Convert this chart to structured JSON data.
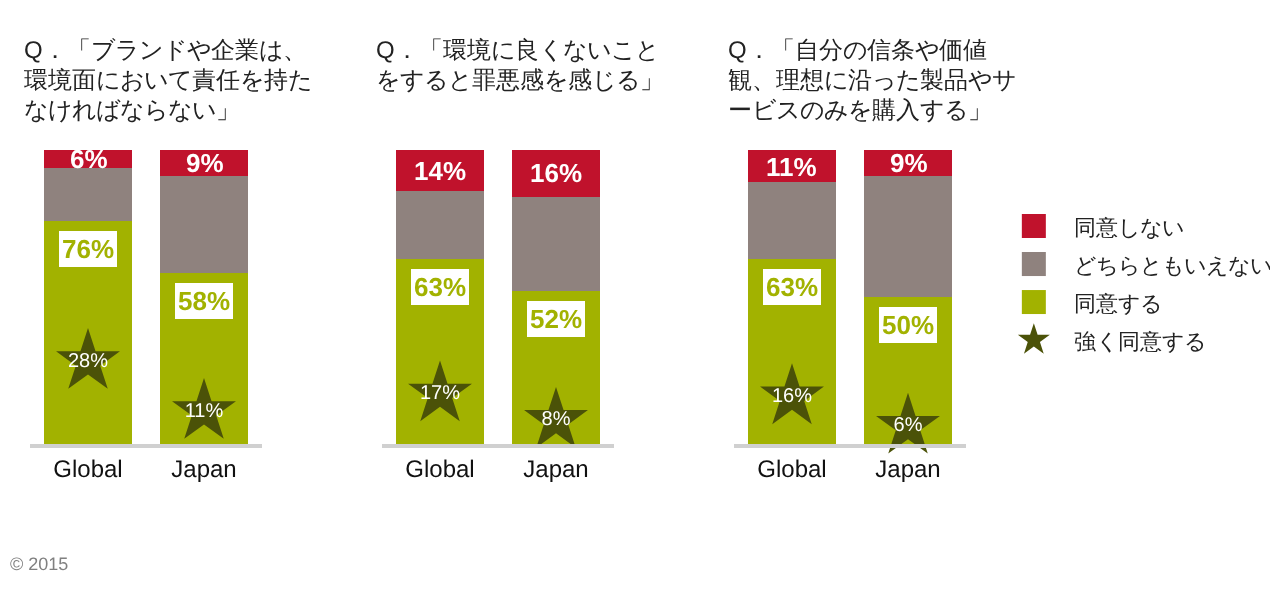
{
  "chart_data": [
    {
      "type": "bar",
      "title": "Q．「ブランドや企業は、環境面において責任を持たなければならない」",
      "categories": [
        "Global",
        "Japan"
      ],
      "stacked": true,
      "ylim": [
        0,
        100
      ],
      "tick_labels": "x",
      "annotations": [
        "© 2015"
      ],
      "series": [
        {
          "color": "#a2b200",
          "values": [
            76,
            58
          ],
          "value_labels": [
            "76%",
            "58%"
          ]
        },
        {
          "color": "#8f827e",
          "values": [
            18,
            33
          ]
        },
        {
          "color": "#c0122c",
          "values": [
            6,
            9
          ],
          "value_labels": [
            "6%",
            "9%"
          ]
        },
        {
          "type": "scatter",
          "marker": "star",
          "color": "#4b5208",
          "x": [
            "Global",
            "Japan"
          ],
          "values": [
            28,
            11
          ],
          "value_labels": [
            "28%",
            "11%"
          ]
        }
      ]
    },
    {
      "type": "bar",
      "title": "Q．「環境に良くないことをすると罪悪感を感じる」",
      "categories": [
        "Global",
        "Japan"
      ],
      "stacked": true,
      "ylim": [
        0,
        100
      ],
      "tick_labels": "x",
      "series": [
        {
          "color": "#a2b200",
          "values": [
            63,
            52
          ],
          "value_labels": [
            "63%",
            "52%"
          ]
        },
        {
          "color": "#8f827e",
          "values": [
            23,
            32
          ]
        },
        {
          "color": "#c0122c",
          "values": [
            14,
            16
          ],
          "value_labels": [
            "14%",
            "16%"
          ]
        },
        {
          "type": "scatter",
          "marker": "star",
          "color": "#4b5208",
          "x": [
            "Global",
            "Japan"
          ],
          "values": [
            17,
            8
          ],
          "value_labels": [
            "17%",
            "8%"
          ]
        }
      ]
    },
    {
      "type": "bar",
      "title": "Q．「自分の信条や価値観、理想に沿った製品やサービスのみを購入する」",
      "categories": [
        "Global",
        "Japan"
      ],
      "stacked": true,
      "ylim": [
        0,
        100
      ],
      "tick_labels": "x",
      "legend": "right",
      "series": [
        {
          "name": "同意する",
          "color": "#a2b200",
          "values": [
            63,
            50
          ],
          "value_labels": [
            "63%",
            "50%"
          ]
        },
        {
          "name": "どちらともいえない",
          "color": "#8f827e",
          "values": [
            26,
            41
          ]
        },
        {
          "name": "同意しない",
          "color": "#c0122c",
          "values": [
            11,
            9
          ],
          "value_labels": [
            "11%",
            "9%"
          ]
        },
        {
          "name": "強く同意する",
          "type": "scatter",
          "marker": "star",
          "color": "#4b5208",
          "x": [
            "Global",
            "Japan"
          ],
          "values": [
            16,
            6
          ],
          "value_labels": [
            "16%",
            "6%"
          ]
        }
      ]
    }
  ]
}
